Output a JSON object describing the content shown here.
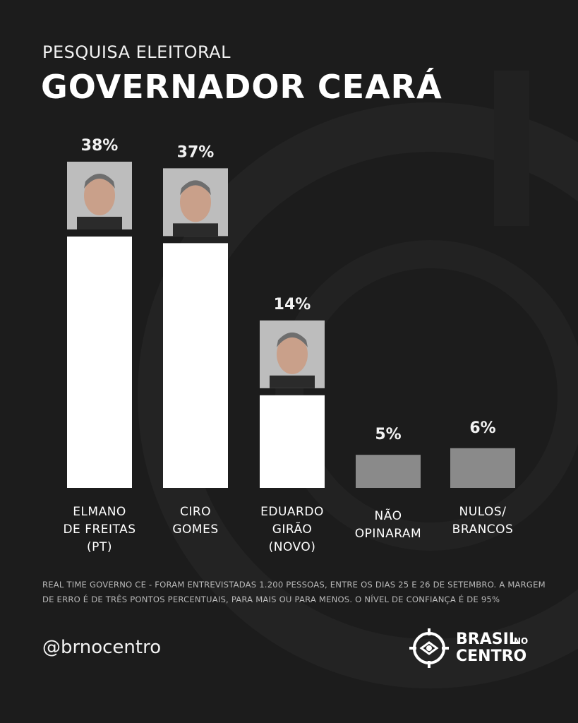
{
  "header": {
    "pre_title": "PESQUISA ELEITORAL",
    "title": "GOVERNADOR CEARÁ"
  },
  "chart_data": {
    "type": "bar",
    "categories": [
      "ELMANO\nDE FREITAS\n(PT)",
      "CIRO\nGOMES",
      "EDUARDO\nGIRÃO\n(NOVO)",
      "NÃO\nOPINARAM",
      "NULOS/\nBRANCOS"
    ],
    "values": [
      38,
      37,
      14,
      5,
      6
    ],
    "value_labels": [
      "38%",
      "37%",
      "14%",
      "5%",
      "6%"
    ],
    "bar_colors": [
      "#ffffff",
      "#ffffff",
      "#ffffff",
      "#8a8a8a",
      "#8a8a8a"
    ],
    "has_photo": [
      true,
      true,
      true,
      false,
      false
    ],
    "ylim": [
      0,
      38
    ],
    "grid": false
  },
  "footnote": "REAL TIME GOVERNO CE - FORAM ENTREVISTADAS 1.200 PESSOAS, ENTRE OS DIAS 25 E 26 DE SETEMBRO. A MARGEM DE ERRO É DE TRÊS PONTOS PERCENTUAIS, PARA MAIS OU PARA MENOS. O NÍVEL DE CONFIANÇA É DE 95%",
  "handle": "@brnocentro",
  "brand": {
    "word1": "BRASIL",
    "word2": "NO",
    "word3": "CENTRO"
  },
  "colors": {
    "background": "#1c1c1c",
    "bar_main": "#ffffff",
    "bar_other": "#8a8a8a"
  }
}
